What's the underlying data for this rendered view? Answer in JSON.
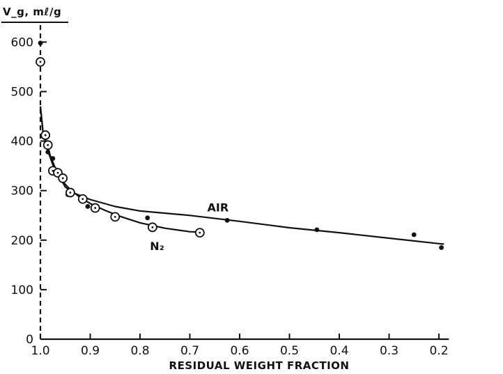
{
  "chart_data": {
    "type": "scatter",
    "ylabel": "V_g, mℓ/g",
    "xlabel": "RESIDUAL WEIGHT FRACTION",
    "xlim": [
      1.0,
      0.18
    ],
    "x_reversed": true,
    "ylim": [
      0,
      620
    ],
    "grid": false,
    "x_ticks": [
      1.0,
      0.9,
      0.8,
      0.7,
      0.6,
      0.5,
      0.4,
      0.3,
      0.2
    ],
    "x_tick_labels": [
      "1.0",
      "0.9",
      "0.8",
      "0.7",
      "0.6",
      "0.5",
      "0.4",
      "0.3",
      "0.2"
    ],
    "y_ticks": [
      0,
      100,
      200,
      300,
      400,
      500,
      600
    ],
    "y_tick_labels": [
      "0",
      "100",
      "200",
      "300",
      "400",
      "500",
      "600"
    ],
    "series": [
      {
        "name": "AIR",
        "marker": "filled-dot",
        "points": [
          [
            1.0,
            598
          ],
          [
            0.99,
            412
          ],
          [
            0.985,
            378
          ],
          [
            0.975,
            365
          ],
          [
            0.97,
            338
          ],
          [
            0.965,
            332
          ],
          [
            0.955,
            322
          ],
          [
            0.945,
            292
          ],
          [
            0.905,
            268
          ],
          [
            0.785,
            245
          ],
          [
            0.625,
            240
          ],
          [
            0.445,
            221
          ],
          [
            0.25,
            211
          ],
          [
            0.195,
            185
          ]
        ],
        "curve": [
          [
            1.0,
            470
          ],
          [
            0.995,
            420
          ],
          [
            0.98,
            370
          ],
          [
            0.97,
            345
          ],
          [
            0.96,
            325
          ],
          [
            0.95,
            307
          ],
          [
            0.93,
            294
          ],
          [
            0.9,
            282
          ],
          [
            0.85,
            268
          ],
          [
            0.8,
            259
          ],
          [
            0.7,
            250
          ],
          [
            0.6,
            238
          ],
          [
            0.5,
            225
          ],
          [
            0.4,
            215
          ],
          [
            0.3,
            204
          ],
          [
            0.2,
            193
          ],
          [
            0.19,
            192
          ]
        ]
      },
      {
        "name": "N2",
        "marker": "open-circle",
        "points": [
          [
            1.0,
            560
          ],
          [
            0.99,
            412
          ],
          [
            0.985,
            392
          ],
          [
            0.975,
            340
          ],
          [
            0.965,
            336
          ],
          [
            0.955,
            325
          ],
          [
            0.94,
            296
          ],
          [
            0.915,
            283
          ],
          [
            0.89,
            265
          ],
          [
            0.85,
            247
          ],
          [
            0.775,
            226
          ],
          [
            0.68,
            215
          ]
        ],
        "curve": [
          [
            1.0,
            470
          ],
          [
            0.995,
            420
          ],
          [
            0.985,
            380
          ],
          [
            0.975,
            352
          ],
          [
            0.965,
            332
          ],
          [
            0.955,
            318
          ],
          [
            0.94,
            302
          ],
          [
            0.92,
            286
          ],
          [
            0.9,
            274
          ],
          [
            0.87,
            260
          ],
          [
            0.84,
            248
          ],
          [
            0.8,
            235
          ],
          [
            0.75,
            224
          ],
          [
            0.7,
            217
          ],
          [
            0.68,
            216
          ]
        ]
      }
    ],
    "annotations": [
      {
        "text": "AIR",
        "x": 0.665,
        "y": 258
      },
      {
        "text": "N₂",
        "x": 0.78,
        "y": 180
      }
    ]
  }
}
